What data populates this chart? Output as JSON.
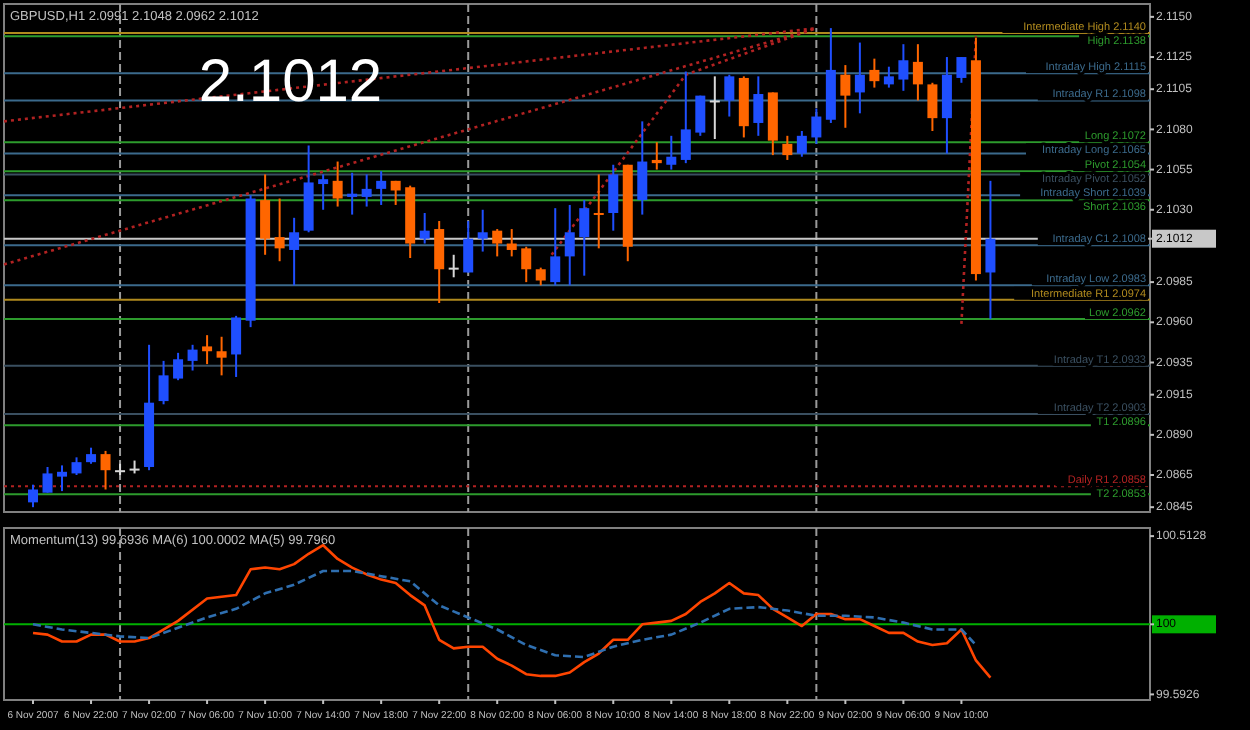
{
  "chart_data": [
    {
      "type": "candlestick",
      "title": "GBPUSD,H1 2.0991 2.1048 2.0962 2.1012",
      "annotations": [
        "2.1012"
      ],
      "tick_labels": "y",
      "xlim": [
        "2007-11-06T16:00",
        "2007-11-09T23:00"
      ],
      "ylim": [
        2.0842,
        2.1158
      ],
      "yticks": [
        {
          "value": 2.115,
          "label": "2.1150"
        },
        2.1125,
        2.1105,
        {
          "value": 2.108,
          "label": "2.1080"
        },
        2.1055,
        {
          "value": 2.103,
          "label": "2.1030"
        },
        2.1012,
        2.0985,
        {
          "value": 2.096,
          "label": "2.0960"
        },
        2.0935,
        2.0915,
        {
          "value": 2.089,
          "label": "2.0890"
        },
        2.0865,
        2.0845
      ],
      "x": [
        "2007-11-06T18:00",
        "2007-11-06T19:00",
        "2007-11-06T20:00",
        "2007-11-06T21:00",
        "2007-11-06T22:00",
        "2007-11-06T23:00",
        "2007-11-07T00:00",
        "2007-11-07T01:00",
        "2007-11-07T02:00",
        "2007-11-07T03:00",
        "2007-11-07T04:00",
        "2007-11-07T05:00",
        "2007-11-07T06:00",
        "2007-11-07T07:00",
        "2007-11-07T08:00",
        "2007-11-07T09:00",
        "2007-11-07T10:00",
        "2007-11-07T11:00",
        "2007-11-07T12:00",
        "2007-11-07T13:00",
        "2007-11-07T14:00",
        "2007-11-07T15:00",
        "2007-11-07T16:00",
        "2007-11-07T17:00",
        "2007-11-07T18:00",
        "2007-11-07T19:00",
        "2007-11-07T20:00",
        "2007-11-07T21:00",
        "2007-11-07T22:00",
        "2007-11-07T23:00",
        "2007-11-08T00:00",
        "2007-11-08T01:00",
        "2007-11-08T02:00",
        "2007-11-08T03:00",
        "2007-11-08T04:00",
        "2007-11-08T05:00",
        "2007-11-08T06:00",
        "2007-11-08T07:00",
        "2007-11-08T08:00",
        "2007-11-08T09:00",
        "2007-11-08T10:00",
        "2007-11-08T11:00",
        "2007-11-08T12:00",
        "2007-11-08T13:00",
        "2007-11-08T14:00",
        "2007-11-08T15:00",
        "2007-11-08T16:00",
        "2007-11-08T17:00",
        "2007-11-08T18:00",
        "2007-11-08T19:00",
        "2007-11-08T20:00",
        "2007-11-08T21:00",
        "2007-11-08T22:00",
        "2007-11-08T23:00",
        "2007-11-09T00:00",
        "2007-11-09T01:00",
        "2007-11-09T02:00",
        "2007-11-09T03:00",
        "2007-11-09T04:00",
        "2007-11-09T05:00",
        "2007-11-09T06:00",
        "2007-11-09T07:00",
        "2007-11-09T08:00",
        "2007-11-09T09:00",
        "2007-11-09T10:00",
        "2007-11-09T11:00",
        "2007-11-09T12:00"
      ],
      "ohlc": [
        [
          2.0848,
          2.0859,
          2.0845,
          2.0856
        ],
        [
          2.0854,
          2.087,
          2.0854,
          2.0866
        ],
        [
          2.0864,
          2.0871,
          2.0855,
          2.0867
        ],
        [
          2.0866,
          2.0876,
          2.0865,
          2.0873
        ],
        [
          2.0873,
          2.0882,
          2.0872,
          2.0878
        ],
        [
          2.0878,
          2.088,
          2.0856,
          2.0868
        ],
        [
          2.0868,
          2.0872,
          2.0865,
          2.0868
        ],
        [
          2.0869,
          2.0874,
          2.0866,
          2.0869
        ],
        [
          2.087,
          2.0946,
          2.0868,
          2.091
        ],
        [
          2.0911,
          2.0936,
          2.0909,
          2.0927
        ],
        [
          2.0925,
          2.0941,
          2.0924,
          2.0937
        ],
        [
          2.0936,
          2.0946,
          2.093,
          2.0943
        ],
        [
          2.0945,
          2.0952,
          2.0934,
          2.0942
        ],
        [
          2.0942,
          2.0951,
          2.0927,
          2.0938
        ],
        [
          2.094,
          2.0964,
          2.0926,
          2.0963
        ],
        [
          2.0961,
          2.1039,
          2.0957,
          2.1037
        ],
        [
          2.1036,
          2.1052,
          2.1002,
          2.1012
        ],
        [
          2.1013,
          2.1037,
          2.0998,
          2.1006
        ],
        [
          2.1005,
          2.1025,
          2.0983,
          2.1016
        ],
        [
          2.1017,
          2.107,
          2.1016,
          2.1047
        ],
        [
          2.1046,
          2.1052,
          2.103,
          2.1049
        ],
        [
          2.1048,
          2.106,
          2.1032,
          2.1037
        ],
        [
          2.1038,
          2.1053,
          2.1027,
          2.104
        ],
        [
          2.1038,
          2.1052,
          2.1032,
          2.1043
        ],
        [
          2.1043,
          2.1054,
          2.1033,
          2.1048
        ],
        [
          2.1048,
          2.1048,
          2.1033,
          2.1042
        ],
        [
          2.1044,
          2.1045,
          2.1,
          2.1009
        ],
        [
          2.1012,
          2.1028,
          2.1009,
          2.1017
        ],
        [
          2.1018,
          2.1023,
          2.0972,
          2.0993
        ],
        [
          2.0994,
          2.1002,
          2.0988,
          2.0994
        ],
        [
          2.0991,
          2.1023,
          2.0991,
          2.1012
        ],
        [
          2.1012,
          2.103,
          2.1004,
          2.1016
        ],
        [
          2.1017,
          2.1018,
          2.1001,
          2.1009
        ],
        [
          2.1009,
          2.1018,
          2.1001,
          2.1005
        ],
        [
          2.1006,
          2.1007,
          2.0985,
          2.0993
        ],
        [
          2.0993,
          2.0994,
          2.0983,
          2.0986
        ],
        [
          2.0985,
          2.1031,
          2.0983,
          2.1001
        ],
        [
          2.1001,
          2.1033,
          2.0983,
          2.1016
        ],
        [
          2.1013,
          2.1036,
          2.0989,
          2.1031
        ],
        [
          2.1028,
          2.1052,
          2.1006,
          2.1027
        ],
        [
          2.1028,
          2.1058,
          2.1017,
          2.1052
        ],
        [
          2.1058,
          2.1058,
          2.0998,
          2.1007
        ],
        [
          2.1036,
          2.1085,
          2.1027,
          2.106
        ],
        [
          2.1061,
          2.1072,
          2.1055,
          2.1059
        ],
        [
          2.1058,
          2.1076,
          2.1055,
          2.1063
        ],
        [
          2.1061,
          2.1116,
          2.1059,
          2.108
        ],
        [
          2.1078,
          2.1101,
          2.1076,
          2.1101
        ],
        [
          2.1098,
          2.1113,
          2.1074,
          2.1098
        ],
        [
          2.1098,
          2.1114,
          2.1088,
          2.1113
        ],
        [
          2.1112,
          2.1113,
          2.1075,
          2.1082
        ],
        [
          2.1084,
          2.1113,
          2.1076,
          2.1102
        ],
        [
          2.1103,
          2.1103,
          2.1064,
          2.1073
        ],
        [
          2.1071,
          2.1076,
          2.1061,
          2.1064
        ],
        [
          2.1065,
          2.1079,
          2.1063,
          2.1076
        ],
        [
          2.1075,
          2.1093,
          2.1071,
          2.1088
        ],
        [
          2.1086,
          2.1143,
          2.1084,
          2.1117
        ],
        [
          2.1114,
          2.112,
          2.1081,
          2.1101
        ],
        [
          2.1103,
          2.1134,
          2.109,
          2.1114
        ],
        [
          2.1117,
          2.1124,
          2.1106,
          2.111
        ],
        [
          2.1108,
          2.1119,
          2.1106,
          2.1113
        ],
        [
          2.1111,
          2.1133,
          2.1104,
          2.1123
        ],
        [
          2.1122,
          2.1133,
          2.1098,
          2.1108
        ],
        [
          2.1108,
          2.1109,
          2.1079,
          2.1087
        ],
        [
          2.1087,
          2.1125,
          2.1065,
          2.1114
        ],
        [
          2.1112,
          2.1125,
          2.1109,
          2.1125
        ],
        [
          2.1123,
          2.1137,
          2.0986,
          2.099
        ],
        [
          2.0991,
          2.1048,
          2.0962,
          2.1012
        ]
      ],
      "colors": [
        "#1f4fff",
        "#1f4fff",
        "#1f4fff",
        "#1f4fff",
        "#1f4fff",
        "#ff6600",
        "#d8d8d8",
        "#d8d8d8",
        "#1f4fff",
        "#1f4fff",
        "#1f4fff",
        "#1f4fff",
        "#ff6600",
        "#ff6600",
        "#1f4fff",
        "#1f4fff",
        "#ff6600",
        "#ff6600",
        "#1f4fff",
        "#1f4fff",
        "#1f4fff",
        "#ff6600",
        "#1f4fff",
        "#1f4fff",
        "#1f4fff",
        "#ff6600",
        "#ff6600",
        "#1f4fff",
        "#ff6600",
        "#d8d8d8",
        "#1f4fff",
        "#1f4fff",
        "#ff6600",
        "#ff6600",
        "#ff6600",
        "#ff6600",
        "#1f4fff",
        "#1f4fff",
        "#1f4fff",
        "#ff6600",
        "#1f4fff",
        "#ff6600",
        "#1f4fff",
        "#ff6600",
        "#1f4fff",
        "#1f4fff",
        "#1f4fff",
        "#d8d8d8",
        "#1f4fff",
        "#ff6600",
        "#1f4fff",
        "#ff6600",
        "#ff6600",
        "#1f4fff",
        "#1f4fff",
        "#1f4fff",
        "#ff6600",
        "#1f4fff",
        "#ff6600",
        "#1f4fff",
        "#1f4fff",
        "#ff6600",
        "#ff6600",
        "#1f4fff",
        "#1f4fff",
        "#ff6600",
        "#1f4fff"
      ],
      "series": [
        {
          "type": "line",
          "color": "#b22222",
          "line_style": "dotted",
          "x": [
            "2007-11-06T16:00",
            "2007-11-09T00:00"
          ],
          "values": [
            2.1085,
            2.1143
          ]
        },
        {
          "type": "line",
          "color": "#b22222",
          "line_style": "dotted",
          "x": [
            "2007-11-06T16:00",
            "2007-11-09T00:00"
          ],
          "values": [
            2.0996,
            2.1143
          ]
        },
        {
          "type": "line",
          "color": "#b22222",
          "line_style": "dotted",
          "x": [
            "2007-11-08T05:45",
            "2007-11-08T15:00",
            "2007-11-09T00:00"
          ],
          "values": [
            2.1002,
            2.1114,
            2.1143
          ]
        },
        {
          "type": "line",
          "color": "#b22222",
          "line_style": "dotted",
          "x": [
            "2007-11-09T10:00",
            "2007-11-09T11:00"
          ],
          "values": [
            2.0959,
            2.1138
          ]
        }
      ],
      "ref_lines": [
        {
          "axis": "x",
          "value": "2007-11-07T00:00",
          "label": null,
          "color": "#9a9a9a",
          "line_style": "dashed"
        },
        {
          "axis": "x",
          "value": "2007-11-08T00:00",
          "label": null,
          "color": "#9a9a9a",
          "line_style": "dashed"
        },
        {
          "axis": "x",
          "value": "2007-11-09T00:00",
          "label": null,
          "color": "#9a9a9a",
          "line_style": "dashed"
        },
        {
          "axis": "y",
          "value": 2.114,
          "label": "Intermediate High 2.1140",
          "color": "#b08a1e",
          "line_style": "solid"
        },
        {
          "axis": "y",
          "value": 2.1138,
          "label": "High 2.1138",
          "color": "#2d9b2d",
          "line_style": "solid"
        },
        {
          "axis": "y",
          "value": 2.1115,
          "label": "Intraday High 2.1115",
          "color": "#3b6a8c",
          "line_style": "solid"
        },
        {
          "axis": "y",
          "value": 2.1098,
          "label": "Intraday R1 2.1098",
          "color": "#3b6a8c",
          "line_style": "solid"
        },
        {
          "axis": "y",
          "value": 2.1072,
          "label": "Long 2.1072",
          "color": "#2d9b2d",
          "line_style": "solid"
        },
        {
          "axis": "y",
          "value": 2.1065,
          "label": "Intraday Long 2.1065",
          "color": "#3b6a8c",
          "line_style": "solid"
        },
        {
          "axis": "y",
          "value": 2.1054,
          "label": "Pivot 2.1054",
          "color": "#2d9b2d",
          "line_style": "solid"
        },
        {
          "axis": "y",
          "value": 2.1052,
          "label": "Intraday Pivot 2.1052",
          "color": "#3a4f60",
          "line_style": "solid"
        },
        {
          "axis": "y",
          "value": 2.1039,
          "label": "Intraday Short 2.1039",
          "color": "#3b6a8c",
          "line_style": "solid"
        },
        {
          "axis": "y",
          "value": 2.1036,
          "label": "Short 2.1036",
          "color": "#2d9b2d",
          "line_style": "solid"
        },
        {
          "axis": "y",
          "value": 2.1012,
          "label": null,
          "color": "#c8c8c8",
          "line_style": "solid"
        },
        {
          "axis": "y",
          "value": 2.1008,
          "label": "Intraday C1 2.1008",
          "color": "#3b6a8c",
          "line_style": "solid"
        },
        {
          "axis": "y",
          "value": 2.0983,
          "label": "Intraday Low 2.0983",
          "color": "#3b6a8c",
          "line_style": "solid"
        },
        {
          "axis": "y",
          "value": 2.0974,
          "label": "Intermediate R1 2.0974",
          "color": "#b08a1e",
          "line_style": "solid"
        },
        {
          "axis": "y",
          "value": 2.0962,
          "label": "Low 2.0962",
          "color": "#2d9b2d",
          "line_style": "solid"
        },
        {
          "axis": "y",
          "value": 2.0933,
          "label": "Intraday T1 2.0933",
          "color": "#3a4f60",
          "line_style": "solid"
        },
        {
          "axis": "y",
          "value": 2.0903,
          "label": "Intraday T2 2.0903",
          "color": "#3a4f60",
          "line_style": "solid"
        },
        {
          "axis": "y",
          "value": 2.0896,
          "label": "T1 2.0896",
          "color": "#2d9b2d",
          "line_style": "solid"
        },
        {
          "axis": "y",
          "value": 2.0858,
          "label": "Daily R1 2.0858",
          "color": "#b22222",
          "line_style": "dotted"
        },
        {
          "axis": "y",
          "value": 2.0853,
          "label": "T2 2.0853",
          "color": "#2d9b2d",
          "line_style": "solid"
        }
      ]
    },
    {
      "type": "line",
      "title": "Momentum(13) 99.6936 MA(6) 100.0002 MA(5) 99.7960",
      "xlim": [
        "2007-11-06T16:00",
        "2007-11-09T23:00"
      ],
      "ylim": [
        99.56,
        100.56
      ],
      "yticks": [
        100.5128,
        100,
        99.5926
      ],
      "xticks": [
        {
          "value": "2007-11-06T18:00",
          "label": "6 Nov 2007"
        },
        {
          "value": "2007-11-06T22:00",
          "label": "6 Nov 22:00"
        },
        {
          "value": "2007-11-07T02:00",
          "label": "7 Nov 02:00"
        },
        {
          "value": "2007-11-07T06:00",
          "label": "7 Nov 06:00"
        },
        {
          "value": "2007-11-07T10:00",
          "label": "7 Nov 10:00"
        },
        {
          "value": "2007-11-07T14:00",
          "label": "7 Nov 14:00"
        },
        {
          "value": "2007-11-07T18:00",
          "label": "7 Nov 18:00"
        },
        {
          "value": "2007-11-07T22:00",
          "label": "7 Nov 22:00"
        },
        {
          "value": "2007-11-08T02:00",
          "label": "8 Nov 02:00"
        },
        {
          "value": "2007-11-08T06:00",
          "label": "8 Nov 06:00"
        },
        {
          "value": "2007-11-08T10:00",
          "label": "8 Nov 10:00"
        },
        {
          "value": "2007-11-08T14:00",
          "label": "8 Nov 14:00"
        },
        {
          "value": "2007-11-08T18:00",
          "label": "8 Nov 18:00"
        },
        {
          "value": "2007-11-08T22:00",
          "label": "8 Nov 22:00"
        },
        {
          "value": "2007-11-09T02:00",
          "label": "9 Nov 02:00"
        },
        {
          "value": "2007-11-09T06:00",
          "label": "9 Nov 06:00"
        },
        {
          "value": "2007-11-09T10:00",
          "label": "9 Nov 10:00"
        }
      ],
      "series": [
        {
          "color": "#ff4500",
          "line_style": "solid",
          "x": [
            "2007-11-06T18:00",
            "2007-11-06T19:00",
            "2007-11-06T20:00",
            "2007-11-06T21:00",
            "2007-11-06T22:00",
            "2007-11-06T23:00",
            "2007-11-07T00:00",
            "2007-11-07T01:00",
            "2007-11-07T02:00",
            "2007-11-07T04:00",
            "2007-11-07T06:00",
            "2007-11-07T07:00",
            "2007-11-07T08:00",
            "2007-11-07T09:00",
            "2007-11-07T10:00",
            "2007-11-07T11:00",
            "2007-11-07T12:00",
            "2007-11-07T13:00",
            "2007-11-07T14:00",
            "2007-11-07T15:00",
            "2007-11-07T16:00",
            "2007-11-07T17:00",
            "2007-11-07T18:00",
            "2007-11-07T19:00",
            "2007-11-07T20:00",
            "2007-11-07T21:00",
            "2007-11-07T22:00",
            "2007-11-07T23:00",
            "2007-11-08T00:00",
            "2007-11-08T01:00",
            "2007-11-08T02:00",
            "2007-11-08T03:00",
            "2007-11-08T04:00",
            "2007-11-08T05:00",
            "2007-11-08T06:00",
            "2007-11-08T07:00",
            "2007-11-08T08:00",
            "2007-11-08T09:00",
            "2007-11-08T10:00",
            "2007-11-08T11:00",
            "2007-11-08T12:00",
            "2007-11-08T13:00",
            "2007-11-08T14:00",
            "2007-11-08T15:00",
            "2007-11-08T16:00",
            "2007-11-08T17:00",
            "2007-11-08T18:00",
            "2007-11-08T19:00",
            "2007-11-08T20:00",
            "2007-11-08T21:00",
            "2007-11-08T22:00",
            "2007-11-08T23:00",
            "2007-11-09T00:00",
            "2007-11-09T01:00",
            "2007-11-09T02:00",
            "2007-11-09T03:00",
            "2007-11-09T04:00",
            "2007-11-09T05:00",
            "2007-11-09T06:00",
            "2007-11-09T07:00",
            "2007-11-09T08:00",
            "2007-11-09T09:00",
            "2007-11-09T10:00",
            "2007-11-09T11:00",
            "2007-11-09T12:00"
          ],
          "values": [
            99.95,
            99.94,
            99.9,
            99.9,
            99.94,
            99.94,
            99.9,
            99.9,
            99.92,
            100.02,
            100.15,
            100.16,
            100.17,
            100.32,
            100.33,
            100.32,
            100.35,
            100.41,
            100.46,
            100.38,
            100.33,
            100.29,
            100.26,
            100.24,
            100.17,
            100.11,
            99.91,
            99.86,
            99.87,
            99.87,
            99.8,
            99.76,
            99.71,
            99.7,
            99.7,
            99.72,
            99.78,
            99.83,
            99.91,
            99.91,
            100.0,
            100.01,
            100.02,
            100.06,
            100.13,
            100.18,
            100.24,
            100.18,
            100.17,
            100.09,
            100.04,
            99.99,
            100.06,
            100.06,
            100.03,
            100.03,
            99.99,
            99.95,
            99.95,
            99.9,
            99.88,
            99.89,
            99.97,
            99.79,
            99.69
          ]
        },
        {
          "color": "#2f6fb0",
          "line_style": "dashed",
          "x": [
            "2007-11-06T18:00",
            "2007-11-06T20:00",
            "2007-11-06T22:00",
            "2007-11-07T00:00",
            "2007-11-07T02:00",
            "2007-11-07T04:00",
            "2007-11-07T06:00",
            "2007-11-07T08:00",
            "2007-11-07T10:00",
            "2007-11-07T12:00",
            "2007-11-07T14:00",
            "2007-11-07T16:00",
            "2007-11-07T18:00",
            "2007-11-07T20:00",
            "2007-11-07T22:00",
            "2007-11-08T00:00",
            "2007-11-08T02:00",
            "2007-11-08T04:00",
            "2007-11-08T06:00",
            "2007-11-08T08:00",
            "2007-11-08T10:00",
            "2007-11-08T12:00",
            "2007-11-08T14:00",
            "2007-11-08T16:00",
            "2007-11-08T18:00",
            "2007-11-08T20:00",
            "2007-11-08T22:00",
            "2007-11-09T00:00",
            "2007-11-09T02:00",
            "2007-11-09T04:00",
            "2007-11-09T06:00",
            "2007-11-09T08:00",
            "2007-11-09T10:00",
            "2007-11-09T11:00"
          ],
          "values": [
            100.0,
            99.97,
            99.95,
            99.93,
            99.92,
            99.98,
            100.04,
            100.09,
            100.18,
            100.23,
            100.31,
            100.31,
            100.28,
            100.25,
            100.11,
            100.04,
            99.97,
            99.88,
            99.82,
            99.81,
            99.87,
            99.91,
            99.94,
            100.01,
            100.09,
            100.1,
            100.08,
            100.05,
            100.05,
            100.04,
            100.01,
            99.97,
            99.97,
            99.88
          ]
        }
      ],
      "ref_lines": [
        {
          "axis": "x",
          "value": "2007-11-07T00:00",
          "label": null,
          "color": "#9a9a9a",
          "line_style": "dashed"
        },
        {
          "axis": "x",
          "value": "2007-11-08T00:00",
          "label": null,
          "color": "#9a9a9a",
          "line_style": "dashed"
        },
        {
          "axis": "x",
          "value": "2007-11-09T00:00",
          "label": null,
          "color": "#9a9a9a",
          "line_style": "dashed"
        },
        {
          "axis": "y",
          "value": 100,
          "label": null,
          "color": "#00b000",
          "line_style": "solid"
        }
      ]
    }
  ]
}
